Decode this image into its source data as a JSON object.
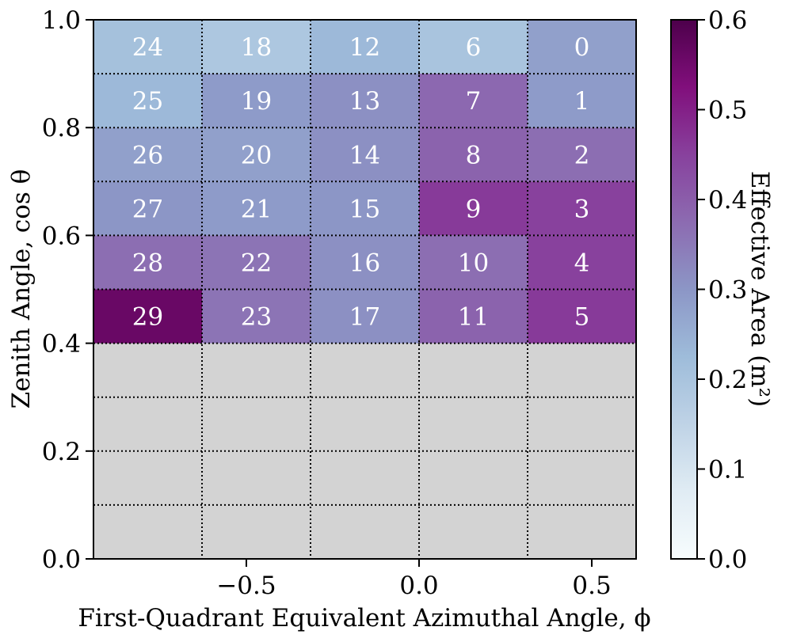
{
  "chart_data": {
    "type": "heatmap",
    "xlabel": "First-Quadrant Equivalent Azimuthal Angle, ϕ",
    "ylabel": "Zenith Angle, cos θ",
    "colorbar_label": "Effective Area (m²)",
    "x_edges": [
      -0.9425,
      -0.6283,
      -0.3142,
      0.0,
      0.3142,
      0.6283
    ],
    "y_edges": [
      0.0,
      0.1,
      0.2,
      0.3,
      0.4,
      0.5,
      0.6,
      0.7,
      0.8,
      0.9,
      1.0
    ],
    "xlim": [
      -0.9425,
      0.6283
    ],
    "ylim": [
      0.0,
      1.0
    ],
    "clim": [
      0.0,
      0.6
    ],
    "colormap": "BuPu",
    "no_data_color": "#d3d3d3",
    "grid_style": "dotted",
    "x_ticks": [
      -0.5,
      0.0,
      0.5
    ],
    "x_tick_labels": [
      "−0.5",
      "0.0",
      "0.5"
    ],
    "y_ticks": [
      0.0,
      0.2,
      0.4,
      0.6,
      0.8,
      1.0
    ],
    "y_tick_labels": [
      "0.0",
      "0.2",
      "0.4",
      "0.6",
      "0.8",
      "1.0"
    ],
    "colorbar_ticks": [
      0.0,
      0.1,
      0.2,
      0.3,
      0.4,
      0.5,
      0.6
    ],
    "colorbar_tick_labels": [
      "0.0",
      "0.1",
      "0.2",
      "0.3",
      "0.4",
      "0.5",
      "0.6"
    ],
    "cells": [
      {
        "label": "24",
        "col": 0,
        "row": 0,
        "value": 0.21
      },
      {
        "label": "18",
        "col": 1,
        "row": 0,
        "value": 0.19
      },
      {
        "label": "12",
        "col": 2,
        "row": 0,
        "value": 0.23
      },
      {
        "label": "6",
        "col": 3,
        "row": 0,
        "value": 0.2
      },
      {
        "label": "0",
        "col": 4,
        "row": 0,
        "value": 0.28
      },
      {
        "label": "25",
        "col": 0,
        "row": 1,
        "value": 0.23
      },
      {
        "label": "19",
        "col": 1,
        "row": 1,
        "value": 0.29
      },
      {
        "label": "13",
        "col": 2,
        "row": 1,
        "value": 0.31
      },
      {
        "label": "7",
        "col": 3,
        "row": 1,
        "value": 0.38
      },
      {
        "label": "1",
        "col": 4,
        "row": 1,
        "value": 0.29
      },
      {
        "label": "26",
        "col": 0,
        "row": 2,
        "value": 0.28
      },
      {
        "label": "20",
        "col": 1,
        "row": 2,
        "value": 0.28
      },
      {
        "label": "14",
        "col": 2,
        "row": 2,
        "value": 0.31
      },
      {
        "label": "8",
        "col": 3,
        "row": 2,
        "value": 0.39
      },
      {
        "label": "2",
        "col": 4,
        "row": 2,
        "value": 0.37
      },
      {
        "label": "27",
        "col": 0,
        "row": 3,
        "value": 0.3
      },
      {
        "label": "21",
        "col": 1,
        "row": 3,
        "value": 0.29
      },
      {
        "label": "15",
        "col": 2,
        "row": 3,
        "value": 0.3
      },
      {
        "label": "9",
        "col": 3,
        "row": 3,
        "value": 0.46
      },
      {
        "label": "3",
        "col": 4,
        "row": 3,
        "value": 0.45
      },
      {
        "label": "28",
        "col": 0,
        "row": 4,
        "value": 0.37
      },
      {
        "label": "22",
        "col": 1,
        "row": 4,
        "value": 0.36
      },
      {
        "label": "16",
        "col": 2,
        "row": 4,
        "value": 0.31
      },
      {
        "label": "10",
        "col": 3,
        "row": 4,
        "value": 0.37
      },
      {
        "label": "4",
        "col": 4,
        "row": 4,
        "value": 0.45
      },
      {
        "label": "29",
        "col": 0,
        "row": 5,
        "value": 0.56
      },
      {
        "label": "23",
        "col": 1,
        "row": 5,
        "value": 0.36
      },
      {
        "label": "17",
        "col": 2,
        "row": 5,
        "value": 0.31
      },
      {
        "label": "11",
        "col": 3,
        "row": 5,
        "value": 0.39
      },
      {
        "label": "5",
        "col": 4,
        "row": 5,
        "value": 0.46
      }
    ]
  }
}
